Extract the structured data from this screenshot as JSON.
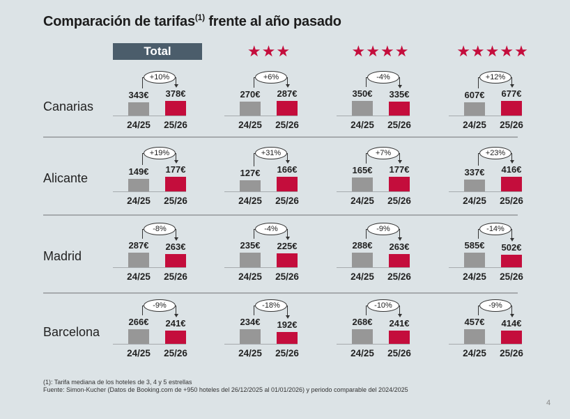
{
  "title": {
    "main_before": "Comparación de tarifas",
    "superscript": "(1)",
    "main_after": " frente al año pasado"
  },
  "columns": [
    {
      "label": "Total",
      "type": "box"
    },
    {
      "label": "★★★",
      "type": "stars",
      "icon": "three-stars-icon"
    },
    {
      "label": "★★★★",
      "type": "stars",
      "icon": "four-stars-icon"
    },
    {
      "label": "★★★★★",
      "type": "stars",
      "icon": "five-stars-icon"
    }
  ],
  "colors": {
    "prev": "#979797",
    "curr": "#c40d3c",
    "header_box": "#4b5d6b"
  },
  "chart_data": {
    "type": "bar",
    "title": "Comparación de tarifas(1) frente al año pasado",
    "categories": [
      "24/25",
      "25/26"
    ],
    "unit": "€",
    "rows": [
      "Canarias",
      "Alicante",
      "Madrid",
      "Barcelona"
    ],
    "columns": [
      "Total",
      "3 estrellas",
      "4 estrellas",
      "5 estrellas"
    ],
    "cells": [
      [
        {
          "prev": 343,
          "curr": 378,
          "prev_label": "343€",
          "curr_label": "378€",
          "change": "+10%"
        },
        {
          "prev": 270,
          "curr": 287,
          "prev_label": "270€",
          "curr_label": "287€",
          "change": "+6%"
        },
        {
          "prev": 350,
          "curr": 335,
          "prev_label": "350€",
          "curr_label": "335€",
          "change": "-4%"
        },
        {
          "prev": 607,
          "curr": 677,
          "prev_label": "607€",
          "curr_label": "677€",
          "change": "+12%"
        }
      ],
      [
        {
          "prev": 149,
          "curr": 177,
          "prev_label": "149€",
          "curr_label": "177€",
          "change": "+19%"
        },
        {
          "prev": 127,
          "curr": 166,
          "prev_label": "127€",
          "curr_label": "166€",
          "change": "+31%"
        },
        {
          "prev": 165,
          "curr": 177,
          "prev_label": "165€",
          "curr_label": "177€",
          "change": "+7%"
        },
        {
          "prev": 337,
          "curr": 416,
          "prev_label": "337€",
          "curr_label": "416€",
          "change": "+23%"
        }
      ],
      [
        {
          "prev": 287,
          "curr": 263,
          "prev_label": "287€",
          "curr_label": "263€",
          "change": "-8%"
        },
        {
          "prev": 235,
          "curr": 225,
          "prev_label": "235€",
          "curr_label": "225€",
          "change": "-4%"
        },
        {
          "prev": 288,
          "curr": 263,
          "prev_label": "288€",
          "curr_label": "263€",
          "change": "-9%"
        },
        {
          "prev": 585,
          "curr": 502,
          "prev_label": "585€",
          "curr_label": "502€",
          "change": "-14%"
        }
      ],
      [
        {
          "prev": 266,
          "curr": 241,
          "prev_label": "266€",
          "curr_label": "241€",
          "change": "-9%"
        },
        {
          "prev": 234,
          "curr": 192,
          "prev_label": "234€",
          "curr_label": "192€",
          "change": "-18%"
        },
        {
          "prev": 268,
          "curr": 241,
          "prev_label": "268€",
          "curr_label": "241€",
          "change": "-10%"
        },
        {
          "prev": 457,
          "curr": 414,
          "prev_label": "457€",
          "curr_label": "414€",
          "change": "-9%"
        }
      ]
    ]
  },
  "footnotes": [
    "(1): Tarifa mediana de los hoteles de 3, 4 y 5 estrellas",
    "Fuente: Simon-Kucher (Datos de Booking.com de +950 hoteles del 26/12/2025 al 01/01/2026) y periodo comparable del 2024/2025"
  ],
  "page_number": "4"
}
